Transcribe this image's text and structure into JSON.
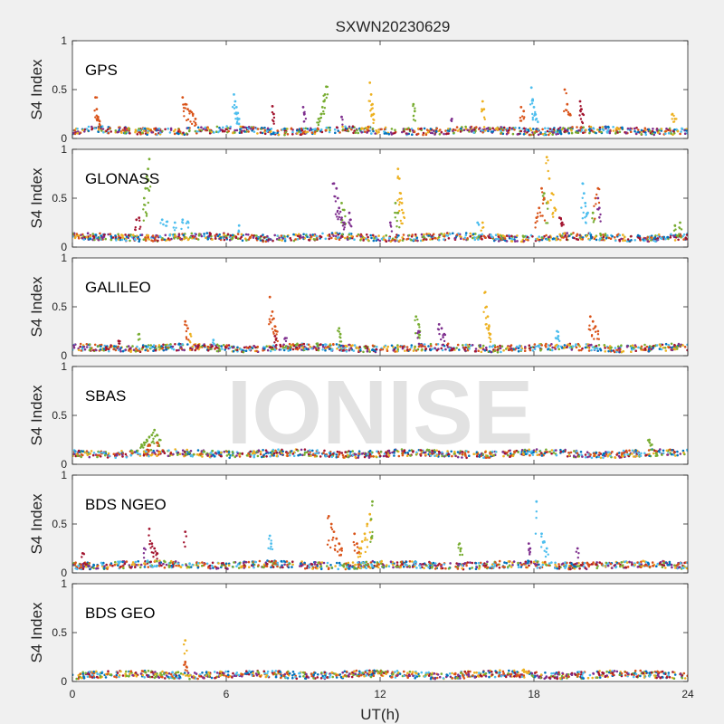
{
  "figure": {
    "title": "SXWN20230629",
    "watermark": "IONISE",
    "xlabel": "UT(h)",
    "ylabel": "S4 Index"
  },
  "colors": {
    "background": "#f0f0f0",
    "axes_background": "#ffffff",
    "series": [
      "#0072BD",
      "#D95319",
      "#EDB120",
      "#7E2F8E",
      "#77AC30",
      "#4DBEEE",
      "#A2142F"
    ]
  },
  "chart_data": {
    "type": "scatter",
    "title": "SXWN20230629",
    "xlabel": "UT(h)",
    "ylabel": "S4 Index",
    "xlim": [
      0,
      24
    ],
    "ylim": [
      0,
      1
    ],
    "xticks": [
      0,
      6,
      12,
      18,
      24
    ],
    "yticks": [
      0,
      0.5,
      1
    ],
    "grid": false,
    "panels": [
      {
        "label": "GPS",
        "baseline": 0.08,
        "series": [
          {
            "color": "#D95319",
            "values": [
              [
                0.9,
                0.42
              ],
              [
                0.95,
                0.3
              ],
              [
                1.0,
                0.22
              ],
              [
                1.05,
                0.18
              ],
              [
                4.3,
                0.42
              ],
              [
                4.4,
                0.35
              ],
              [
                4.5,
                0.3
              ],
              [
                4.6,
                0.28
              ],
              [
                4.7,
                0.25
              ],
              [
                4.8,
                0.2
              ],
              [
                17.5,
                0.32
              ],
              [
                17.6,
                0.28
              ],
              [
                19.2,
                0.5
              ],
              [
                19.3,
                0.35
              ],
              [
                19.4,
                0.25
              ]
            ]
          },
          {
            "color": "#EDB120",
            "values": [
              [
                11.6,
                0.57
              ],
              [
                11.65,
                0.45
              ],
              [
                11.7,
                0.35
              ],
              [
                11.75,
                0.25
              ],
              [
                16.0,
                0.38
              ],
              [
                16.05,
                0.3
              ],
              [
                23.4,
                0.25
              ],
              [
                23.5,
                0.2
              ]
            ]
          },
          {
            "color": "#77AC30",
            "values": [
              [
                9.9,
                0.53
              ],
              [
                9.85,
                0.45
              ],
              [
                9.8,
                0.38
              ],
              [
                9.75,
                0.32
              ],
              [
                9.7,
                0.25
              ],
              [
                9.6,
                0.2
              ],
              [
                13.3,
                0.35
              ],
              [
                13.35,
                0.28
              ]
            ]
          },
          {
            "color": "#4DBEEE",
            "values": [
              [
                6.3,
                0.45
              ],
              [
                6.35,
                0.38
              ],
              [
                6.4,
                0.32
              ],
              [
                6.45,
                0.26
              ],
              [
                6.5,
                0.2
              ],
              [
                17.9,
                0.52
              ],
              [
                17.95,
                0.4
              ],
              [
                18.0,
                0.32
              ],
              [
                18.05,
                0.25
              ],
              [
                18.1,
                0.2
              ]
            ]
          },
          {
            "color": "#A2142F",
            "values": [
              [
                19.8,
                0.38
              ],
              [
                19.85,
                0.3
              ],
              [
                19.9,
                0.25
              ],
              [
                7.8,
                0.33
              ],
              [
                7.85,
                0.25
              ]
            ]
          },
          {
            "color": "#7E2F8E",
            "values": [
              [
                9.0,
                0.32
              ],
              [
                9.05,
                0.25
              ],
              [
                10.5,
                0.22
              ],
              [
                14.8,
                0.2
              ]
            ]
          }
        ]
      },
      {
        "label": "GLONASS",
        "baseline": 0.1,
        "series": [
          {
            "color": "#77AC30",
            "values": [
              [
                3.0,
                0.9
              ],
              [
                2.95,
                0.8
              ],
              [
                2.9,
                0.72
              ],
              [
                2.85,
                0.6
              ],
              [
                2.8,
                0.5
              ],
              [
                10.5,
                0.45
              ],
              [
                10.6,
                0.38
              ],
              [
                12.6,
                0.45
              ],
              [
                12.7,
                0.35
              ],
              [
                18.4,
                0.55
              ],
              [
                18.5,
                0.45
              ],
              [
                20.3,
                0.35
              ],
              [
                23.5,
                0.22
              ],
              [
                23.7,
                0.25
              ]
            ]
          },
          {
            "color": "#7E2F8E",
            "values": [
              [
                10.2,
                0.65
              ],
              [
                10.3,
                0.6
              ],
              [
                10.35,
                0.5
              ],
              [
                10.4,
                0.4
              ],
              [
                10.5,
                0.3
              ],
              [
                10.6,
                0.25
              ],
              [
                10.8,
                0.35
              ],
              [
                10.85,
                0.28
              ],
              [
                12.4,
                0.25
              ],
              [
                20.5,
                0.5
              ],
              [
                20.55,
                0.4
              ]
            ]
          },
          {
            "color": "#EDB120",
            "values": [
              [
                12.7,
                0.8
              ],
              [
                12.75,
                0.7
              ],
              [
                12.8,
                0.55
              ],
              [
                12.85,
                0.45
              ],
              [
                12.9,
                0.35
              ],
              [
                18.5,
                0.92
              ],
              [
                18.6,
                0.7
              ],
              [
                18.7,
                0.55
              ],
              [
                18.8,
                0.4
              ],
              [
                16.0,
                0.25
              ]
            ]
          },
          {
            "color": "#4DBEEE",
            "values": [
              [
                3.5,
                0.28
              ],
              [
                3.7,
                0.26
              ],
              [
                4.0,
                0.25
              ],
              [
                4.3,
                0.28
              ],
              [
                4.5,
                0.26
              ],
              [
                6.5,
                0.22
              ],
              [
                15.8,
                0.25
              ],
              [
                19.9,
                0.65
              ],
              [
                19.95,
                0.55
              ],
              [
                20.0,
                0.45
              ],
              [
                20.1,
                0.35
              ]
            ]
          },
          {
            "color": "#D95319",
            "values": [
              [
                18.3,
                0.6
              ],
              [
                18.4,
                0.5
              ],
              [
                18.2,
                0.4
              ],
              [
                18.1,
                0.3
              ],
              [
                20.5,
                0.6
              ],
              [
                20.4,
                0.5
              ]
            ]
          },
          {
            "color": "#A2142F",
            "values": [
              [
                2.5,
                0.28
              ],
              [
                2.6,
                0.3
              ],
              [
                19.0,
                0.3
              ],
              [
                19.1,
                0.25
              ]
            ]
          }
        ]
      },
      {
        "label": "GALILEO",
        "baseline": 0.08,
        "series": [
          {
            "color": "#D95319",
            "values": [
              [
                7.7,
                0.6
              ],
              [
                7.8,
                0.45
              ],
              [
                7.85,
                0.38
              ],
              [
                7.9,
                0.3
              ],
              [
                7.95,
                0.25
              ],
              [
                4.4,
                0.35
              ],
              [
                4.5,
                0.28
              ],
              [
                20.2,
                0.4
              ],
              [
                20.3,
                0.35
              ],
              [
                20.4,
                0.3
              ],
              [
                20.5,
                0.25
              ]
            ]
          },
          {
            "color": "#EDB120",
            "values": [
              [
                16.1,
                0.65
              ],
              [
                16.15,
                0.5
              ],
              [
                16.2,
                0.4
              ],
              [
                16.25,
                0.3
              ],
              [
                16.3,
                0.22
              ],
              [
                4.6,
                0.22
              ]
            ]
          },
          {
            "color": "#77AC30",
            "values": [
              [
                10.4,
                0.28
              ],
              [
                10.45,
                0.22
              ],
              [
                13.4,
                0.4
              ],
              [
                13.5,
                0.32
              ],
              [
                13.55,
                0.25
              ],
              [
                2.6,
                0.22
              ]
            ]
          },
          {
            "color": "#7E2F8E",
            "values": [
              [
                13.5,
                0.25
              ],
              [
                14.3,
                0.32
              ],
              [
                14.4,
                0.28
              ],
              [
                14.5,
                0.22
              ],
              [
                8.3,
                0.18
              ]
            ]
          },
          {
            "color": "#A2142F",
            "values": [
              [
                1.8,
                0.15
              ],
              [
                7.9,
                0.2
              ]
            ]
          },
          {
            "color": "#4DBEEE",
            "values": [
              [
                18.9,
                0.25
              ],
              [
                18.95,
                0.2
              ],
              [
                5.5,
                0.16
              ]
            ]
          }
        ]
      },
      {
        "label": "SBAS",
        "baseline": 0.11,
        "series": [
          {
            "color": "#77AC30",
            "values": [
              [
                3.2,
                0.35
              ],
              [
                3.1,
                0.3
              ],
              [
                3.0,
                0.28
              ],
              [
                2.9,
                0.25
              ],
              [
                2.8,
                0.22
              ],
              [
                2.7,
                0.2
              ],
              [
                3.3,
                0.3
              ],
              [
                3.4,
                0.25
              ],
              [
                22.5,
                0.25
              ],
              [
                22.6,
                0.2
              ]
            ]
          },
          {
            "color": "#D95319",
            "values": [
              [
                3.3,
                0.22
              ],
              [
                3.0,
                0.2
              ]
            ]
          }
        ]
      },
      {
        "label": "BDS NGEO",
        "baseline": 0.08,
        "series": [
          {
            "color": "#D95319",
            "values": [
              [
                10.0,
                0.58
              ],
              [
                10.1,
                0.5
              ],
              [
                10.2,
                0.42
              ],
              [
                10.3,
                0.35
              ],
              [
                10.4,
                0.3
              ],
              [
                10.5,
                0.25
              ],
              [
                11.0,
                0.4
              ],
              [
                11.1,
                0.3
              ],
              [
                11.2,
                0.25
              ]
            ]
          },
          {
            "color": "#EDB120",
            "values": [
              [
                11.6,
                0.6
              ],
              [
                11.5,
                0.5
              ],
              [
                11.4,
                0.4
              ],
              [
                11.3,
                0.32
              ],
              [
                11.2,
                0.25
              ]
            ]
          },
          {
            "color": "#77AC30",
            "values": [
              [
                11.7,
                0.73
              ],
              [
                11.65,
                0.55
              ],
              [
                15.1,
                0.3
              ],
              [
                15.15,
                0.25
              ]
            ]
          },
          {
            "color": "#4DBEEE",
            "values": [
              [
                18.1,
                0.73
              ],
              [
                18.3,
                0.4
              ],
              [
                18.4,
                0.32
              ],
              [
                18.5,
                0.25
              ],
              [
                7.7,
                0.38
              ],
              [
                7.75,
                0.3
              ]
            ]
          },
          {
            "color": "#A2142F",
            "values": [
              [
                3.0,
                0.45
              ],
              [
                3.1,
                0.3
              ],
              [
                3.2,
                0.25
              ],
              [
                3.3,
                0.2
              ],
              [
                4.4,
                0.42
              ],
              [
                0.4,
                0.2
              ]
            ]
          },
          {
            "color": "#7E2F8E",
            "values": [
              [
                17.8,
                0.3
              ],
              [
                17.85,
                0.25
              ],
              [
                19.7,
                0.25
              ],
              [
                2.8,
                0.25
              ]
            ]
          }
        ]
      },
      {
        "label": "BDS GEO",
        "baseline": 0.07,
        "series": [
          {
            "color": "#EDB120",
            "values": [
              [
                4.4,
                0.42
              ],
              [
                17.6,
                0.12
              ],
              [
                17.7,
                0.1
              ]
            ]
          },
          {
            "color": "#D95319",
            "values": [
              [
                4.4,
                0.2
              ],
              [
                4.45,
                0.15
              ]
            ]
          }
        ]
      }
    ]
  }
}
